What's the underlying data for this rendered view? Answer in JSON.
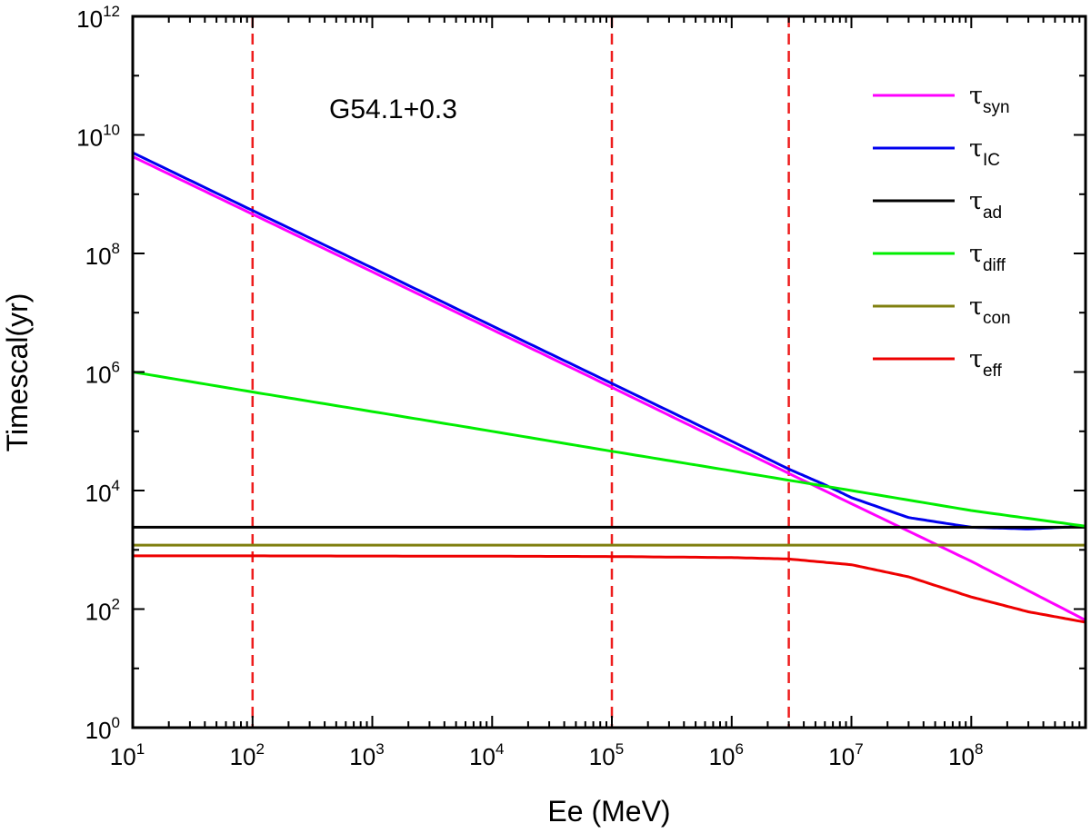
{
  "chart_data": {
    "type": "line",
    "title": "",
    "annotation": "G54.1+0.3",
    "xlabel": "Ee (MeV)",
    "ylabel": "Timescal(yr)",
    "xscale": "log",
    "yscale": "log",
    "xlim": [
      10,
      900000000
    ],
    "ylim": [
      1,
      1000000000000
    ],
    "x_ticks": [
      {
        "base": "10",
        "exp": "1",
        "value": 10
      },
      {
        "base": "10",
        "exp": "2",
        "value": 100
      },
      {
        "base": "10",
        "exp": "3",
        "value": 1000
      },
      {
        "base": "10",
        "exp": "4",
        "value": 10000
      },
      {
        "base": "10",
        "exp": "5",
        "value": 100000
      },
      {
        "base": "10",
        "exp": "6",
        "value": 1000000
      },
      {
        "base": "10",
        "exp": "7",
        "value": 10000000
      },
      {
        "base": "10",
        "exp": "8",
        "value": 100000000
      }
    ],
    "y_ticks": [
      {
        "base": "10",
        "exp": "0",
        "value": 1
      },
      {
        "base": "10",
        "exp": "2",
        "value": 100
      },
      {
        "base": "10",
        "exp": "4",
        "value": 10000
      },
      {
        "base": "10",
        "exp": "6",
        "value": 1000000
      },
      {
        "base": "10",
        "exp": "8",
        "value": 100000000
      },
      {
        "base": "10",
        "exp": "10",
        "value": 10000000000
      },
      {
        "base": "10",
        "exp": "12",
        "value": 1000000000000
      }
    ],
    "vlines": [
      100,
      100000,
      3000000
    ],
    "vline_color": "#ee1c1c",
    "legend_position": "top-right",
    "series": [
      {
        "name": "τsyn",
        "symbol": "τ",
        "sub": "syn",
        "color": "#ff00ff",
        "x": [
          10,
          100,
          1000,
          10000,
          100000,
          1000000,
          10000000,
          100000000,
          900000000
        ],
        "y": [
          4300000000,
          460000000,
          49000000,
          5200000,
          550000,
          57000,
          6000,
          640,
          65
        ]
      },
      {
        "name": "τIC",
        "symbol": "τ",
        "sub": "IC",
        "color": "#0000ee",
        "x": [
          10,
          100,
          1000,
          10000,
          100000,
          1000000,
          3000000,
          6000000,
          10000000,
          30000000,
          100000000,
          300000000,
          900000000
        ],
        "y": [
          5000000000,
          530000000,
          57000000,
          6000000,
          640000,
          68000,
          23000,
          12500,
          7600,
          3500,
          2400,
          2250,
          2500
        ]
      },
      {
        "name": "τad",
        "symbol": "τ",
        "sub": "ad",
        "color": "#000000",
        "x": [
          10,
          900000000
        ],
        "y": [
          2400,
          2400
        ]
      },
      {
        "name": "τdiff",
        "symbol": "τ",
        "sub": "diff",
        "color": "#00ee00",
        "x": [
          10,
          100,
          1000,
          10000,
          100000,
          1000000,
          10000000,
          100000000,
          900000000
        ],
        "y": [
          1000000,
          460000,
          215000,
          100000,
          46000,
          21500,
          10000,
          4600,
          2500
        ]
      },
      {
        "name": "τcon",
        "symbol": "τ",
        "sub": "con",
        "color": "#808010",
        "x": [
          10,
          900000000
        ],
        "y": [
          1200,
          1200
        ]
      },
      {
        "name": "τeff",
        "symbol": "τ",
        "sub": "eff",
        "color": "#ee0000",
        "x": [
          10,
          100,
          1000,
          10000,
          100000,
          1000000,
          3000000,
          10000000,
          30000000,
          100000000,
          300000000,
          900000000
        ],
        "y": [
          790,
          790,
          785,
          780,
          770,
          740,
          700,
          560,
          350,
          160,
          90,
          60
        ]
      }
    ]
  }
}
